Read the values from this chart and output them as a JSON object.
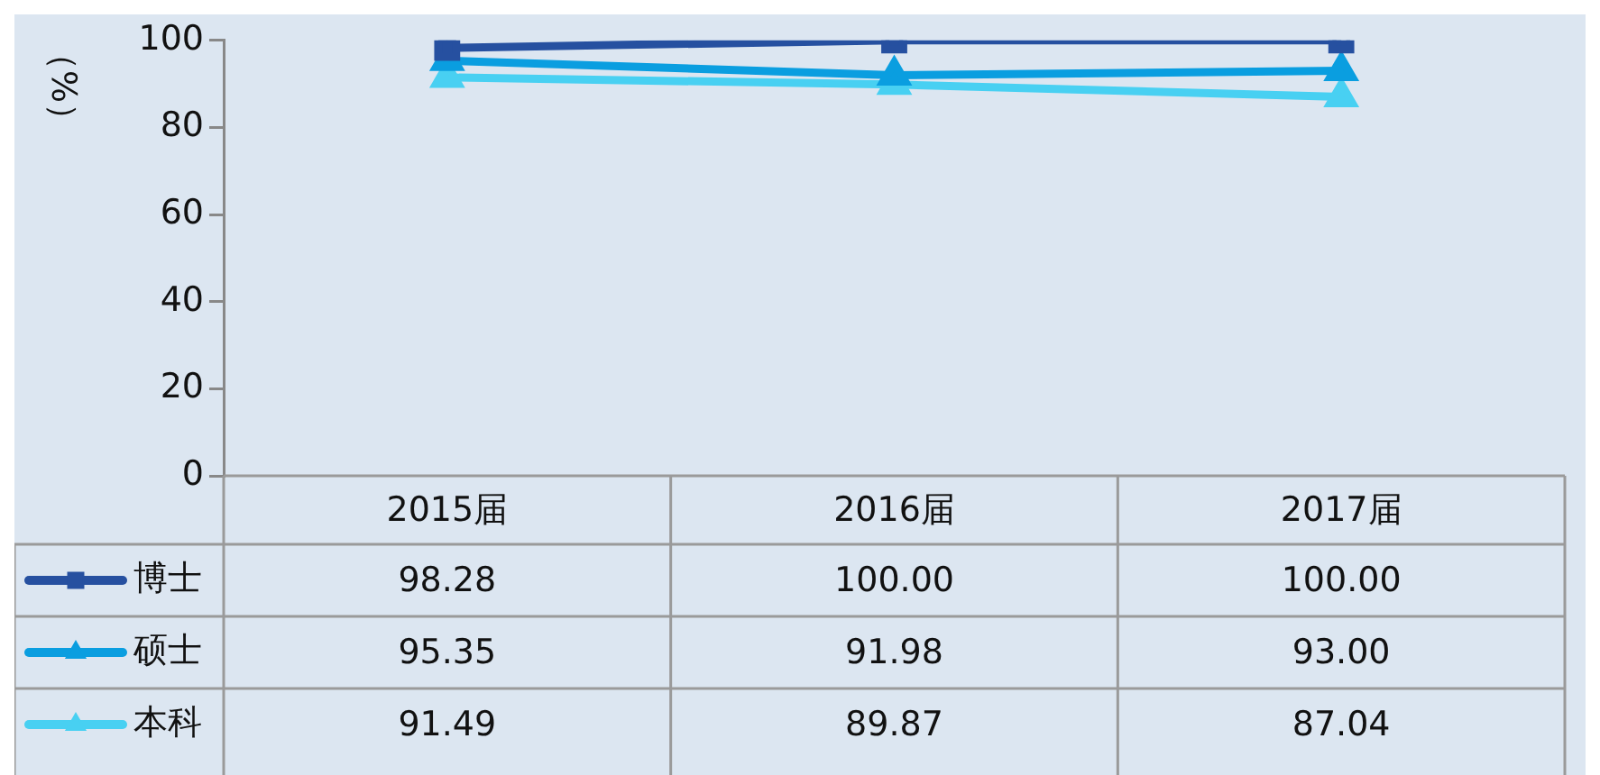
{
  "chart_data": {
    "type": "line",
    "ylabel": "（%）",
    "categories": [
      "2015届",
      "2016届",
      "2017届"
    ],
    "series": [
      {
        "name": "博士",
        "color": "#2650a0",
        "marker": "square",
        "values": [
          98.28,
          100.0,
          100.0
        ],
        "value_labels": [
          "98.28",
          "100.00",
          "100.00"
        ]
      },
      {
        "name": "硕士",
        "color": "#0a9ee0",
        "marker": "triangle",
        "values": [
          95.35,
          91.98,
          93.0
        ],
        "value_labels": [
          "95.35",
          "91.98",
          "93.00"
        ]
      },
      {
        "name": "本科",
        "color": "#48d0f2",
        "marker": "triangle",
        "values": [
          91.49,
          89.87,
          87.04
        ],
        "value_labels": [
          "91.49",
          "89.87",
          "87.04"
        ]
      }
    ],
    "ylim": [
      0,
      100
    ],
    "yticks": [
      0,
      20,
      40,
      60,
      80,
      100
    ],
    "grid": false,
    "legend": "bottom",
    "line_style": "solid"
  }
}
